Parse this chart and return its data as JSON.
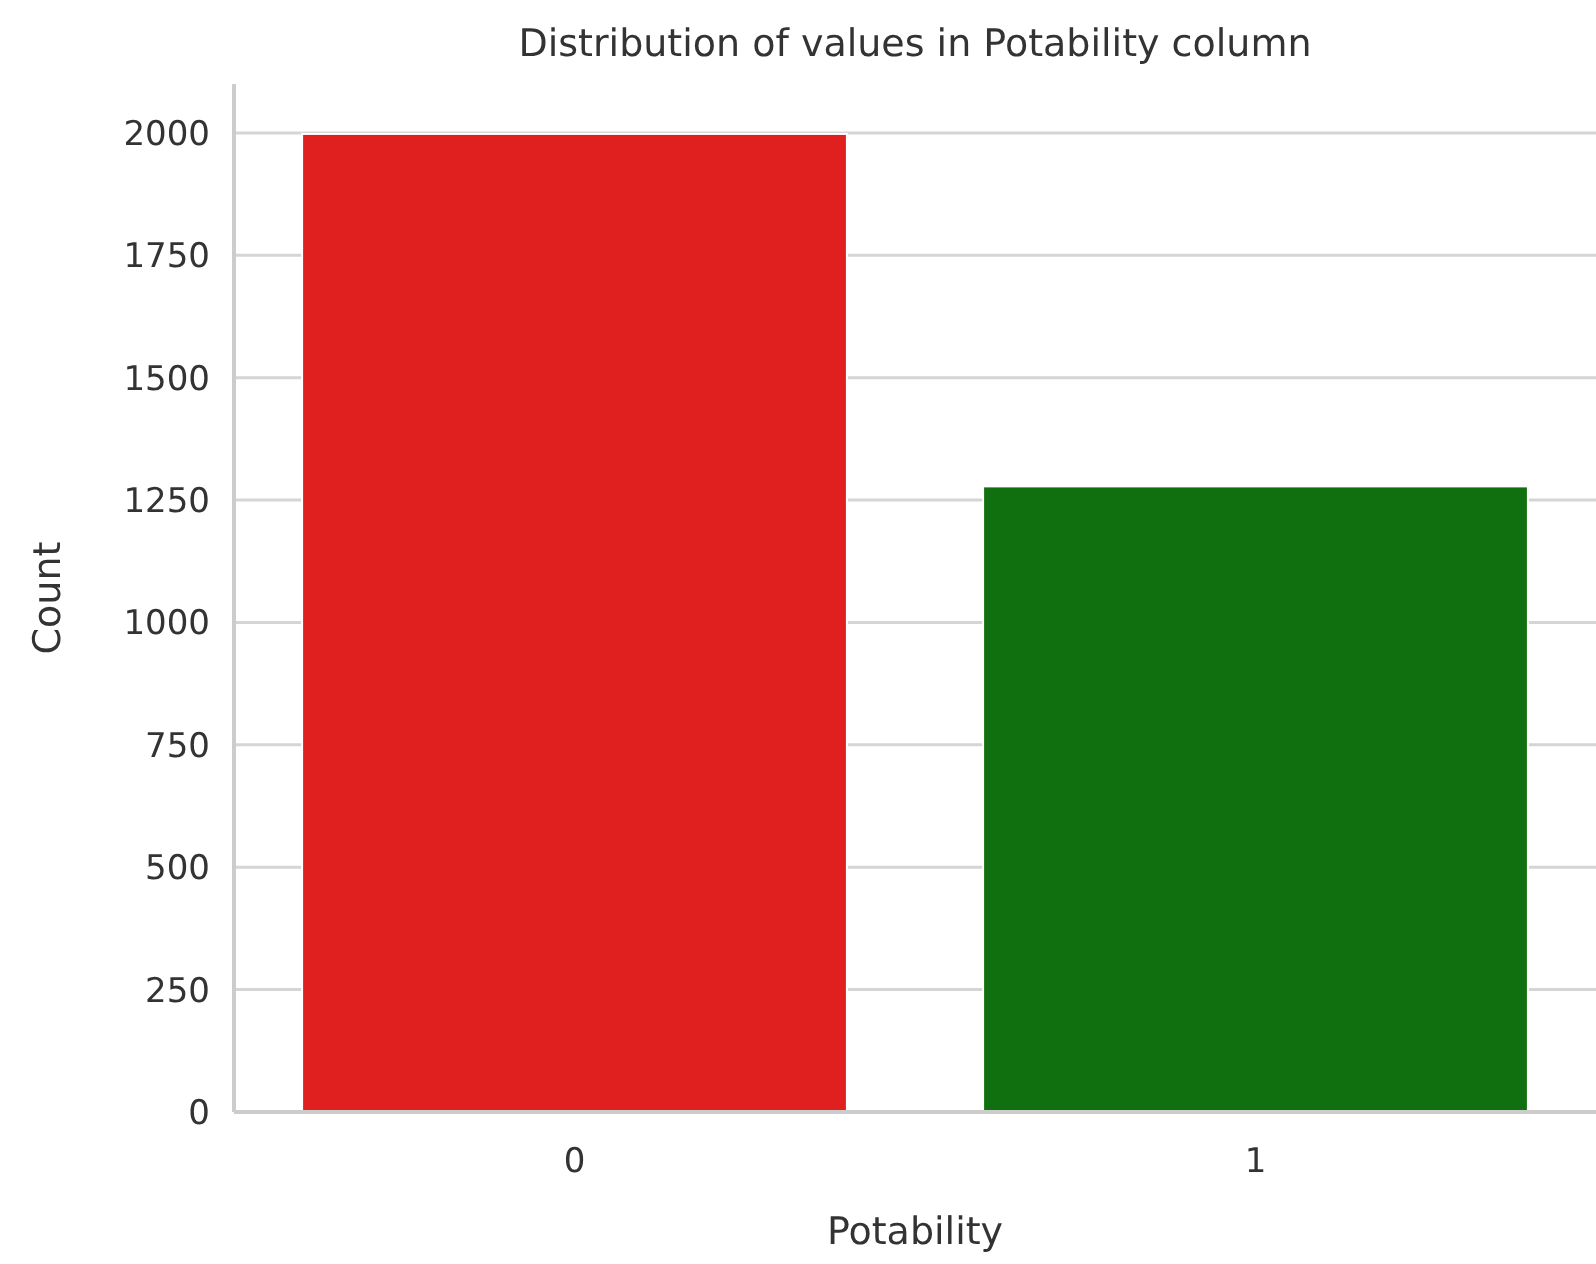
{
  "chart_data": {
    "type": "bar",
    "title": "Distribution of values in Potability column",
    "xlabel": "Potability",
    "ylabel": "Count",
    "categories": [
      "0",
      "1"
    ],
    "values": [
      1998,
      1278
    ],
    "colors": [
      "#e01f1f",
      "#107010"
    ],
    "ylim": [
      0,
      2100
    ],
    "yticks": [
      0,
      250,
      500,
      750,
      1000,
      1250,
      1500,
      1750,
      2000
    ],
    "grid": "y"
  }
}
